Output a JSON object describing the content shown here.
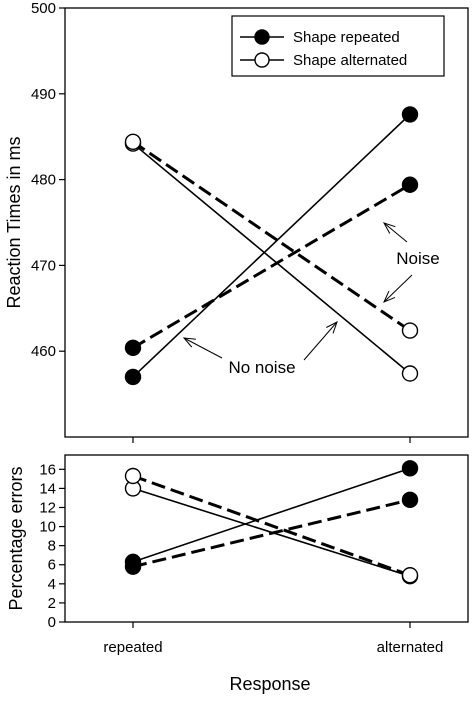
{
  "chart_data": [
    {
      "type": "line",
      "ylabel": "Reaction Times in ms",
      "xlabel": "",
      "categories": [
        "repeated",
        "alternated"
      ],
      "ylim": [
        450,
        500
      ],
      "yticks": [
        460,
        470,
        480,
        490,
        500
      ],
      "grid": false,
      "legend": {
        "position": "top-right",
        "entries": [
          {
            "label": "Shape repeated",
            "marker": "filled-circle"
          },
          {
            "label": "Shape alternated",
            "marker": "open-circle"
          }
        ]
      },
      "series": [
        {
          "shape": "repeated",
          "condition": "No noise",
          "line": "solid",
          "marker": "filled",
          "values": [
            457.0,
            487.6
          ]
        },
        {
          "shape": "repeated",
          "condition": "Noise",
          "line": "dashed",
          "marker": "filled",
          "values": [
            460.4,
            479.4
          ]
        },
        {
          "shape": "alternated",
          "condition": "No noise",
          "line": "solid",
          "marker": "open",
          "values": [
            484.2,
            457.4
          ]
        },
        {
          "shape": "alternated",
          "condition": "Noise",
          "line": "dashed",
          "marker": "open",
          "values": [
            484.4,
            462.4
          ]
        }
      ],
      "annotations": [
        {
          "text": "Noise"
        },
        {
          "text": "No noise"
        }
      ]
    },
    {
      "type": "line",
      "ylabel": "Percentage errors",
      "xlabel": "Response",
      "categories": [
        "repeated",
        "alternated"
      ],
      "ylim": [
        0,
        17.5
      ],
      "yticks": [
        0,
        2,
        4,
        6,
        8,
        10,
        12,
        14,
        16
      ],
      "grid": false,
      "series": [
        {
          "shape": "repeated",
          "condition": "No noise",
          "line": "solid",
          "marker": "filled",
          "values": [
            6.3,
            16.1
          ]
        },
        {
          "shape": "repeated",
          "condition": "Noise",
          "line": "dashed",
          "marker": "filled",
          "values": [
            5.8,
            12.8
          ]
        },
        {
          "shape": "alternated",
          "condition": "No noise",
          "line": "solid",
          "marker": "open",
          "values": [
            14.0,
            4.8
          ]
        },
        {
          "shape": "alternated",
          "condition": "Noise",
          "line": "dashed",
          "marker": "open",
          "values": [
            15.3,
            4.9
          ]
        }
      ]
    }
  ]
}
